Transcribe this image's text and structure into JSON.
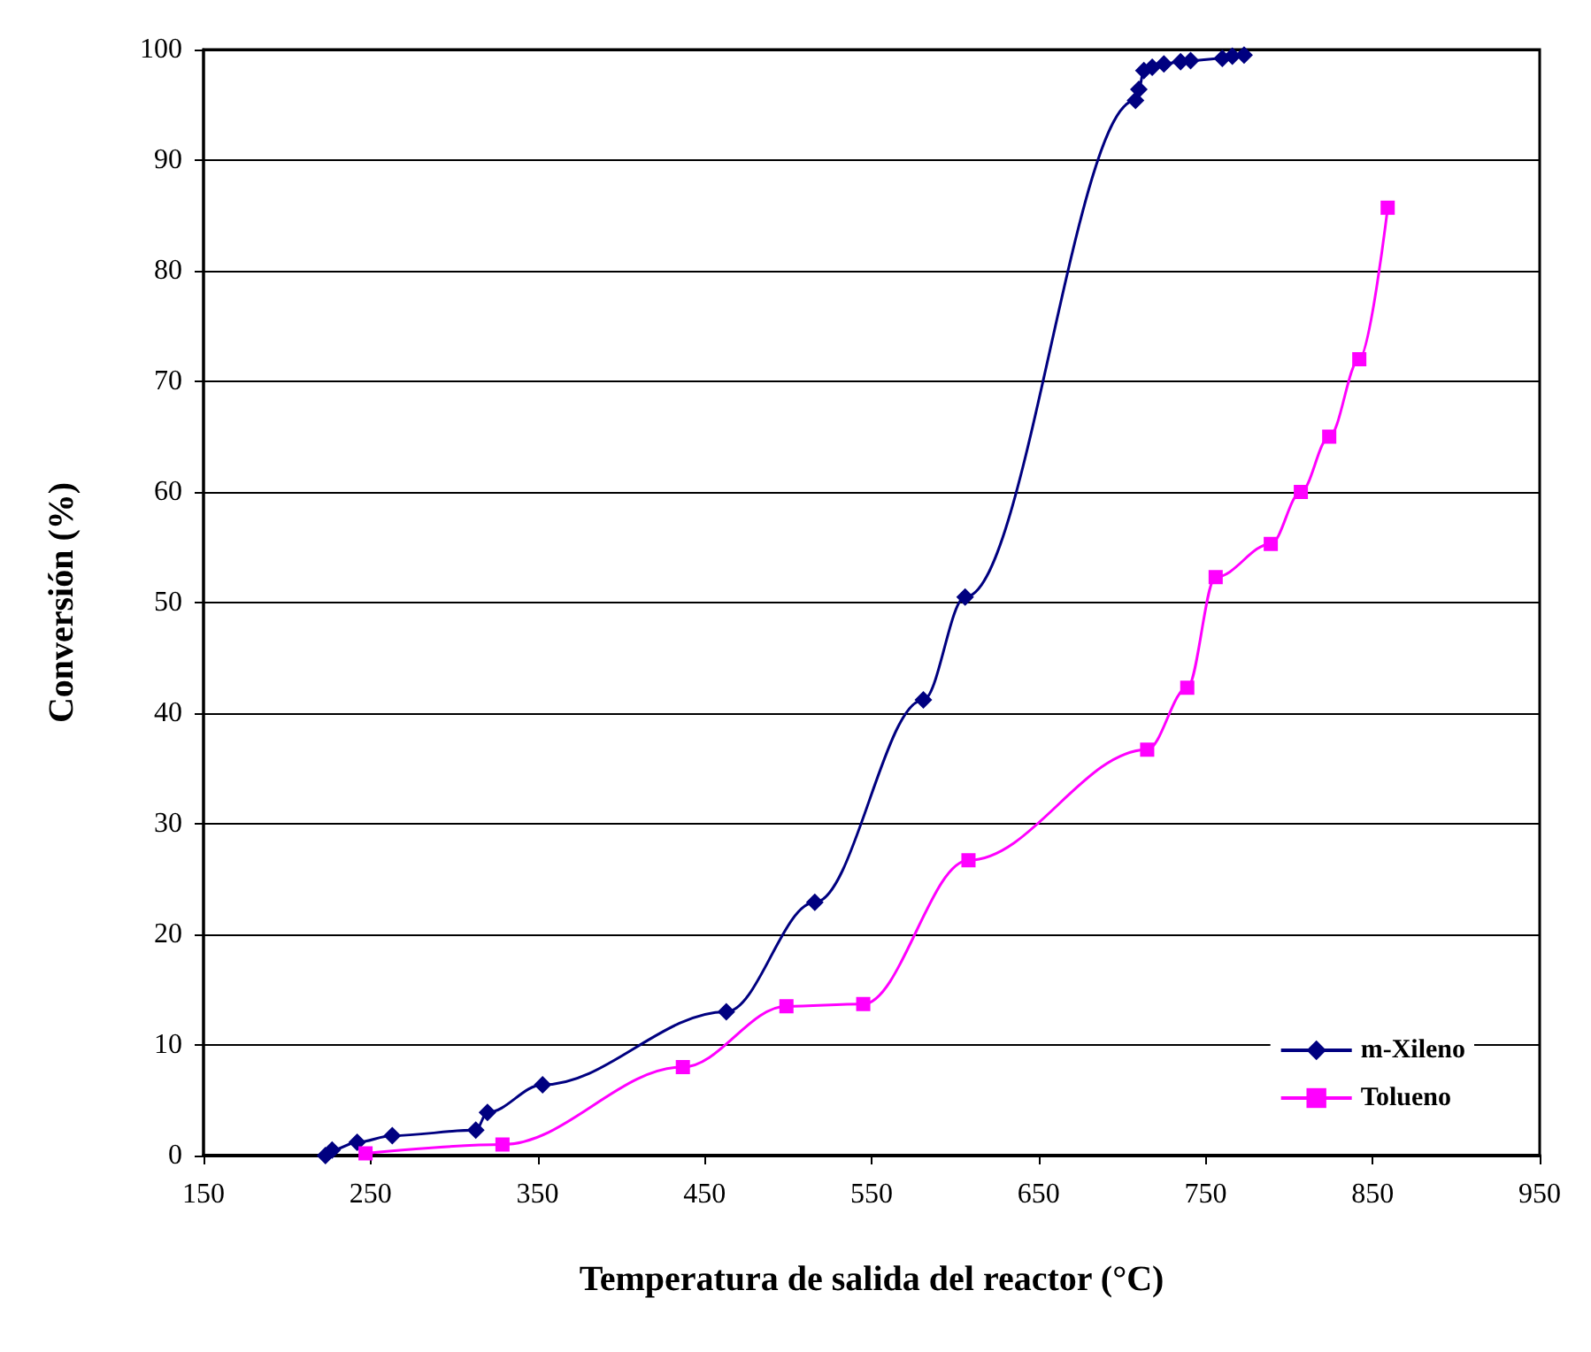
{
  "chart_data": {
    "type": "line",
    "xlabel": "Temperatura de salida del reactor (°C)",
    "ylabel": "Conversión (%)",
    "xlim": [
      150,
      950
    ],
    "xticks": [
      150,
      250,
      350,
      450,
      550,
      650,
      750,
      850,
      950
    ],
    "ylim": [
      0,
      100
    ],
    "yticks": [
      0,
      10,
      20,
      30,
      40,
      50,
      60,
      70,
      80,
      90,
      100
    ],
    "grid": "y",
    "legend": "bottom right",
    "series": [
      {
        "name": "m-Xileno",
        "color": "#000080",
        "marker": "diamond",
        "x": [
          223,
          227,
          242,
          263,
          313,
          320,
          353,
          463,
          516,
          581,
          606,
          708,
          710,
          713,
          718,
          725,
          735,
          741,
          760,
          766,
          773
        ],
        "values": [
          0,
          0.5,
          1.2,
          1.8,
          2.3,
          3.9,
          6.4,
          13.0,
          22.9,
          41.2,
          50.5,
          95.4,
          96.4,
          98.1,
          98.4,
          98.7,
          98.9,
          99.0,
          99.2,
          99.4,
          99.5
        ]
      },
      {
        "name": "Tolueno",
        "color": "#ff00ff",
        "marker": "square",
        "x": [
          247,
          329,
          437,
          499,
          545,
          608,
          715,
          739,
          756,
          789,
          807,
          824,
          842,
          859
        ],
        "values": [
          0.2,
          1.0,
          8.0,
          13.5,
          13.7,
          26.7,
          36.7,
          42.3,
          52.3,
          55.3,
          60.0,
          65.0,
          72.0,
          85.7
        ]
      }
    ]
  }
}
